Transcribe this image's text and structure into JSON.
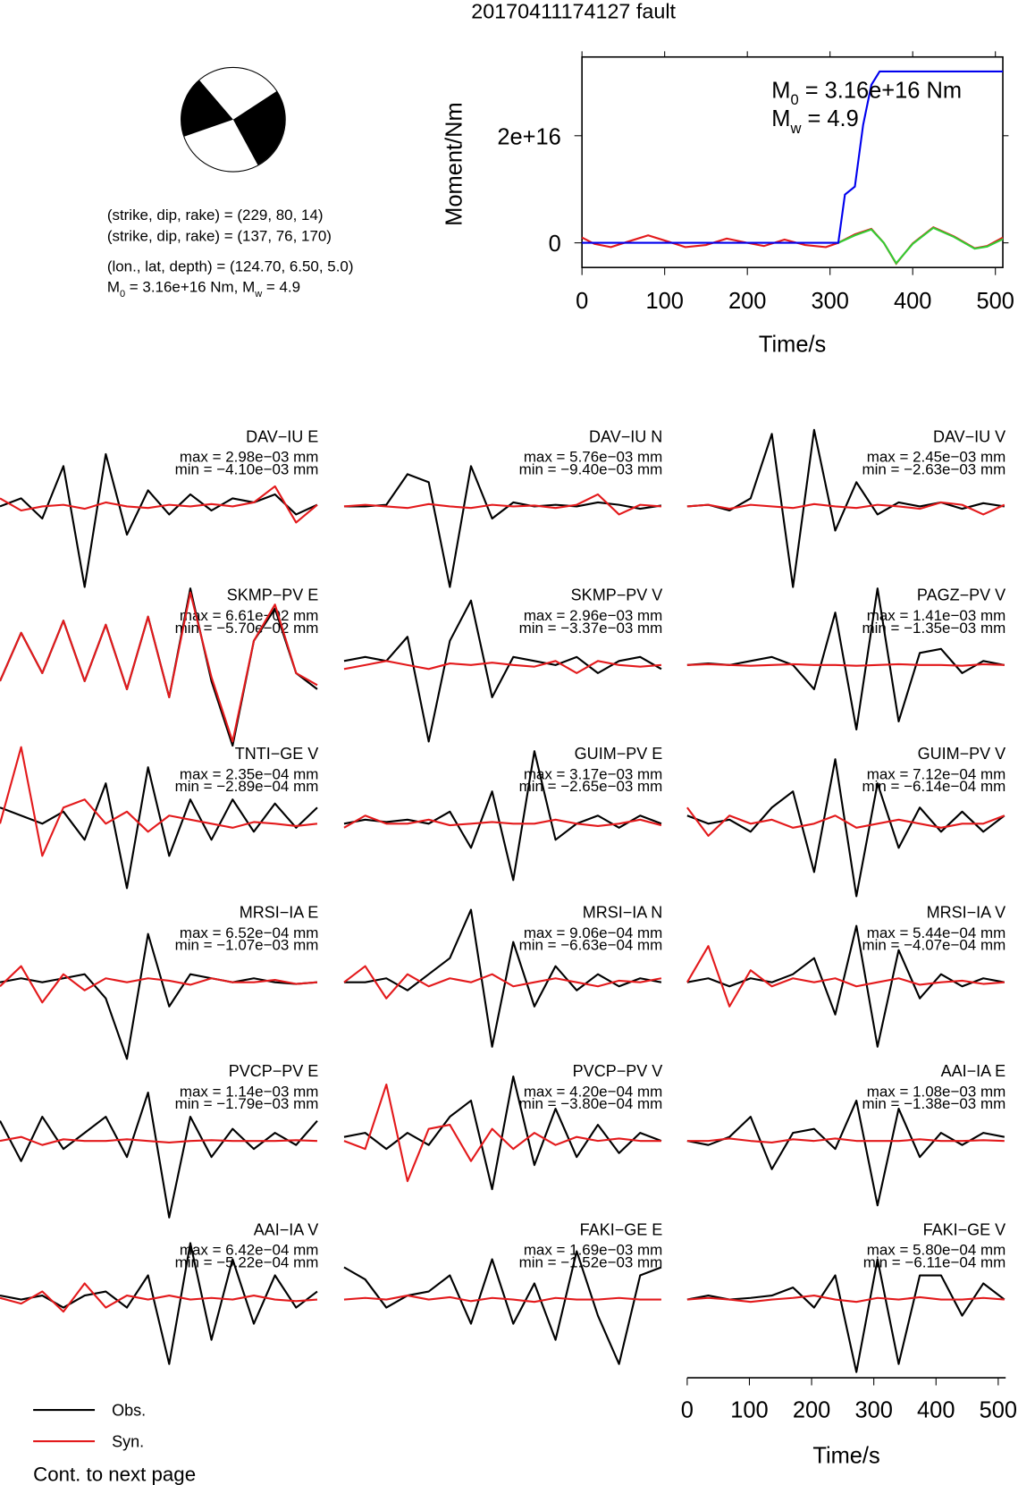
{
  "title": "20170411174127 fault",
  "mechanism": {
    "lines": [
      "(strike, dip, rake) = (229, 80, 14)",
      "(strike, dip, rake) = (137, 76, 170)",
      "(lon., lat, depth) = (124.70, 6.50, 5.0)"
    ],
    "moment_parts": [
      "M",
      "0",
      " = 3.16e+16 Nm, M",
      "w",
      " = 4.9"
    ]
  },
  "chart_data": [
    {
      "type": "line",
      "xlabel": "Time/s",
      "ylabel": "Moment/Nm",
      "xlim": [
        0,
        509
      ],
      "ylim": [
        -4600000000000000.0,
        3.47e+16
      ],
      "xticks": [
        0,
        100,
        200,
        300,
        400,
        500
      ],
      "yticks": [
        0,
        {
          "value": 2e+16,
          "label": "2e+16"
        }
      ],
      "annotations": [
        [
          "M",
          "0",
          " = 3.16e+16 Nm"
        ],
        [
          "M",
          "w",
          " = 4.9"
        ]
      ],
      "series": [
        {
          "color": "#e31a1c",
          "x": [
            0,
            15,
            35,
            55,
            80,
            105,
            125,
            150,
            175,
            200,
            220,
            245,
            270,
            295,
            310,
            330,
            350,
            365,
            380,
            400,
            425,
            450,
            475,
            490,
            509
          ],
          "values": [
            1000000000000000.0,
            -200000000000000.0,
            -800000000000000.0,
            200000000000000.0,
            1400000000000000.0,
            200000000000000.0,
            -800000000000000.0,
            -400000000000000.0,
            800000000000000.0,
            0,
            -600000000000000.0,
            600000000000000.0,
            -400000000000000.0,
            -800000000000000.0,
            0,
            1600000000000000.0,
            2600000000000000.0,
            0,
            -3900000000000000.0,
            -100000000000000.0,
            2900000000000000.0,
            1200000000000000.0,
            -1000000000000000.0,
            -600000000000000.0,
            1000000000000000.0
          ]
        },
        {
          "color": "#33cc33",
          "x": [
            0,
            310,
            330,
            350,
            365,
            380,
            400,
            425,
            450,
            475,
            490,
            509
          ],
          "values": [
            null,
            0,
            1400000000000000.0,
            2500000000000000.0,
            0,
            -3800000000000000.0,
            -200000000000000.0,
            2800000000000000.0,
            1100000000000000.0,
            -1100000000000000.0,
            -700000000000000.0,
            700000000000000.0
          ]
        },
        {
          "color": "#0000ee",
          "x": [
            0,
            310,
            318,
            330,
            340,
            350,
            360,
            509
          ],
          "values": [
            0,
            0,
            9000000000000000.0,
            1.05e+16,
            2.2e+16,
            2.95e+16,
            3.2e+16,
            3.2e+16
          ]
        }
      ]
    },
    {
      "type": "waveform",
      "xlabel": "Time/s",
      "xlim": [
        0,
        512
      ],
      "xticks": [
        0,
        100,
        200,
        300,
        400,
        500
      ],
      "series": [
        {
          "name": "Obs.",
          "color": "#000000"
        },
        {
          "name": "Syn.",
          "color": "#e31a1c"
        }
      ],
      "x": [
        0,
        34,
        68,
        102,
        136,
        170,
        204,
        238,
        272,
        306,
        340,
        374,
        408,
        442,
        476,
        510
      ],
      "panels": [
        {
          "label": "DAV−IU E",
          "max": "max = 2.98e−03 mm",
          "min": "min = −4.10e−03 mm",
          "series": [
            [
              0,
              0.1,
              -0.15,
              0.5,
              -1.0,
              0.65,
              -0.35,
              0.2,
              -0.1,
              0.15,
              -0.05,
              0.1,
              0.05,
              0.15,
              -0.1,
              0.02
            ],
            [
              0.1,
              -0.05,
              0,
              0.02,
              -0.03,
              0.05,
              0,
              -0.02,
              0.02,
              0,
              0.03,
              0,
              0.05,
              0.25,
              -0.2,
              0.02
            ]
          ]
        },
        {
          "label": "DAV−IU N",
          "max": "max = 5.76e−03 mm",
          "min": "min = −9.40e−03 mm",
          "series": [
            [
              0,
              0,
              0.02,
              0.4,
              0.3,
              -1.0,
              0.5,
              -0.15,
              0.05,
              0,
              0.02,
              0,
              0.05,
              0.02,
              -0.03,
              0.01
            ],
            [
              0,
              0.02,
              0,
              -0.02,
              0.03,
              0,
              -0.02,
              0.02,
              0,
              0.01,
              -0.02,
              0.02,
              0.15,
              -0.1,
              0.02,
              0
            ]
          ]
        },
        {
          "label": "DAV−IU V",
          "max": "max = 2.45e−03 mm",
          "min": "min = −2.63e−03 mm",
          "series": [
            [
              0,
              0.02,
              -0.05,
              0.1,
              0.9,
              -1.0,
              0.95,
              -0.3,
              0.3,
              -0.1,
              0.05,
              0,
              0.05,
              -0.03,
              0.04,
              0
            ],
            [
              0,
              0.02,
              -0.03,
              0.02,
              0,
              -0.02,
              0.03,
              0,
              -0.02,
              0.02,
              0,
              -0.03,
              0.05,
              0.02,
              -0.1,
              0.02
            ]
          ]
        },
        {
          "label": "SKMP−PV E",
          "max": "max = 6.61e−02 mm",
          "min": "min = −5.70e−02 mm",
          "series": [
            [
              -0.2,
              0.4,
              -0.1,
              0.55,
              -0.2,
              0.5,
              -0.3,
              0.6,
              -0.4,
              0.95,
              -0.2,
              -1.0,
              0.3,
              0.7,
              -0.1,
              -0.3
            ],
            [
              -0.2,
              0.4,
              -0.1,
              0.55,
              -0.2,
              0.5,
              -0.3,
              0.6,
              -0.4,
              0.9,
              -0.15,
              -0.95,
              0.3,
              0.75,
              -0.1,
              -0.25
            ]
          ]
        },
        {
          "label": "SKMP−PV V",
          "max": "max = 2.96e−03 mm",
          "min": "min = −3.37e−03 mm",
          "series": [
            [
              0.05,
              0.1,
              0.05,
              0.35,
              -0.95,
              0.3,
              0.8,
              -0.4,
              0.1,
              0.05,
              0,
              0.1,
              -0.1,
              0.05,
              0.1,
              -0.05
            ],
            [
              -0.05,
              0,
              0.05,
              0,
              -0.05,
              0.02,
              0,
              0.03,
              0,
              -0.02,
              0.05,
              -0.1,
              0.05,
              0,
              -0.02,
              0
            ]
          ]
        },
        {
          "label": "PAGZ−PV V",
          "max": "max = 1.41e−03 mm",
          "min": "min = −1.35e−03 mm",
          "series": [
            [
              0,
              0.02,
              0,
              0.05,
              0.1,
              0,
              -0.3,
              0.65,
              -0.8,
              0.95,
              -0.7,
              0.15,
              0.2,
              -0.1,
              0.05,
              0
            ],
            [
              0,
              0.01,
              0,
              -0.01,
              0,
              0.01,
              0,
              0,
              -0.01,
              0,
              0.01,
              0,
              0,
              -0.01,
              0.01,
              0
            ]
          ]
        },
        {
          "label": "TNTI−GE V",
          "max": "max = 2.35e−04 mm",
          "min": "min = −2.89e−04 mm",
          "series": [
            [
              0.2,
              0.1,
              0,
              0.15,
              -0.2,
              0.5,
              -0.8,
              0.7,
              -0.4,
              0.3,
              -0.2,
              0.3,
              -0.1,
              0.25,
              -0.05,
              0.2
            ],
            [
              0,
              0.95,
              -0.4,
              0.2,
              0.3,
              0,
              0.15,
              -0.1,
              0.1,
              0.05,
              0,
              -0.05,
              0.02,
              0,
              -0.03,
              0
            ]
          ]
        },
        {
          "label": "GUIM−PV E",
          "max": "max = 3.17e−03 mm",
          "min": "min = −2.65e−03 mm",
          "series": [
            [
              0,
              0.05,
              0.02,
              0.05,
              0,
              0.15,
              -0.3,
              0.4,
              -0.7,
              0.9,
              -0.2,
              0,
              0.1,
              -0.05,
              0.1,
              0
            ],
            [
              -0.05,
              0.1,
              0,
              0,
              0.05,
              -0.02,
              0,
              0.02,
              0,
              0,
              0.05,
              0,
              -0.03,
              0,
              0.05,
              -0.02
            ]
          ]
        },
        {
          "label": "GUIM−PV V",
          "max": "max = 7.12e−04 mm",
          "min": "min = −6.14e−04 mm",
          "series": [
            [
              0.1,
              0,
              0.05,
              -0.1,
              0.2,
              0.4,
              -0.6,
              0.8,
              -0.9,
              0.5,
              -0.3,
              0.2,
              -0.1,
              0.15,
              -0.1,
              0.1
            ],
            [
              0.2,
              -0.15,
              0.1,
              0,
              0.05,
              -0.05,
              0,
              0.1,
              -0.05,
              0,
              0.05,
              0,
              -0.05,
              0,
              0,
              0.1
            ]
          ]
        },
        {
          "label": "MRSI−IA E",
          "max": "max = 6.52e−04 mm",
          "min": "min = −1.07e−03 mm",
          "series": [
            [
              0,
              0.05,
              0,
              0.05,
              0.1,
              -0.2,
              -0.95,
              0.6,
              -0.3,
              0.1,
              0.05,
              0,
              0.05,
              0,
              -0.02,
              0
            ],
            [
              -0.05,
              0.2,
              -0.25,
              0.1,
              -0.1,
              0.05,
              0,
              0.05,
              0.02,
              -0.03,
              0.05,
              0,
              0,
              0.03,
              -0.02,
              0
            ]
          ]
        },
        {
          "label": "MRSI−IA N",
          "max": "max = 9.06e−04 mm",
          "min": "min = −6.63e−04 mm",
          "series": [
            [
              0,
              0,
              0.05,
              -0.1,
              0.1,
              0.3,
              0.9,
              -0.8,
              0.5,
              -0.3,
              0.2,
              -0.1,
              0.1,
              -0.05,
              0.05,
              0
            ],
            [
              0,
              0.2,
              -0.2,
              0.1,
              -0.05,
              0.05,
              0,
              0.1,
              -0.05,
              0,
              0.05,
              0,
              -0.05,
              0.02,
              0,
              0.05
            ]
          ]
        },
        {
          "label": "MRSI−IA V",
          "max": "max = 5.44e−04 mm",
          "min": "min = −4.07e−04 mm",
          "series": [
            [
              0,
              0.05,
              -0.05,
              0.05,
              0,
              0.1,
              0.3,
              -0.4,
              0.7,
              -0.8,
              0.4,
              -0.2,
              0.1,
              -0.05,
              0.05,
              0
            ],
            [
              0,
              0.45,
              -0.3,
              0.15,
              -0.05,
              0.05,
              0,
              0.05,
              -0.05,
              0,
              0.05,
              -0.03,
              0,
              0.02,
              -0.02,
              0
            ]
          ]
        },
        {
          "label": "PVCP−PV E",
          "max": "max = 1.14e−03 mm",
          "min": "min = −1.79e−03 mm",
          "series": [
            [
              0.25,
              -0.25,
              0.3,
              -0.1,
              0.1,
              0.3,
              -0.2,
              0.6,
              -0.95,
              0.3,
              -0.2,
              0.15,
              -0.1,
              0.1,
              -0.05,
              0.25
            ],
            [
              0,
              0.05,
              -0.05,
              0.02,
              0,
              0,
              0.02,
              0,
              -0.02,
              0,
              0.01,
              0,
              0,
              0,
              0.01,
              0
            ]
          ]
        },
        {
          "label": "PVCP−PV V",
          "max": "max = 4.20e−04 mm",
          "min": "min = −3.80e−04 mm",
          "series": [
            [
              0.05,
              0.1,
              -0.1,
              0.1,
              -0.05,
              0.3,
              0.5,
              -0.6,
              0.8,
              -0.3,
              0.4,
              -0.2,
              0.2,
              -0.15,
              0.1,
              0
            ],
            [
              0,
              -0.1,
              0.7,
              -0.5,
              0.15,
              0.2,
              -0.25,
              0.15,
              -0.1,
              0.1,
              -0.05,
              0.05,
              0,
              0.03,
              0,
              0
            ]
          ]
        },
        {
          "label": "AAI−IA E",
          "max": "max = 1.08e−03 mm",
          "min": "min = −1.38e−03 mm",
          "series": [
            [
              0,
              -0.05,
              0.05,
              0.3,
              -0.35,
              0.1,
              0.15,
              -0.1,
              0.5,
              -0.8,
              0.4,
              -0.2,
              0.1,
              -0.05,
              0.1,
              0.05
            ],
            [
              0,
              0,
              0.03,
              0,
              -0.02,
              0.02,
              0,
              0.03,
              0,
              0,
              0,
              0.02,
              0,
              0,
              0.01,
              0
            ]
          ]
        },
        {
          "label": "AAI−IA V",
          "max": "max = 6.42e−04 mm",
          "min": "min = −5.22e−04 mm",
          "series": [
            [
              0.05,
              0,
              0.05,
              -0.1,
              0.05,
              0.1,
              -0.1,
              0.3,
              -0.8,
              0.7,
              -0.5,
              0.5,
              -0.3,
              0.3,
              -0.1,
              0.1
            ],
            [
              0.02,
              -0.05,
              0.1,
              -0.15,
              0.2,
              -0.1,
              0.05,
              0,
              0.05,
              0,
              0.02,
              0,
              0.05,
              0,
              -0.02,
              0
            ]
          ]
        },
        {
          "label": "FAKI−GE E",
          "max": "max = 1.69e−03 mm",
          "min": "min = −1.52e−03 mm",
          "series": [
            [
              0.4,
              0.25,
              -0.1,
              0.05,
              0.1,
              0.3,
              -0.3,
              0.5,
              -0.3,
              0.2,
              -0.5,
              0.6,
              -0.2,
              -0.8,
              0.3,
              0.4
            ],
            [
              0,
              0.02,
              0,
              0.05,
              0,
              0.03,
              -0.02,
              0.02,
              0,
              -0.03,
              0.02,
              0,
              0,
              0.02,
              0,
              0
            ]
          ]
        },
        {
          "label": "FAKI−GE V",
          "max": "max = 5.80e−04 mm",
          "min": "min = −6.11e−04 mm",
          "series": [
            [
              0,
              0.05,
              0,
              0.02,
              0.05,
              0.15,
              -0.1,
              0.3,
              -0.9,
              0.5,
              -0.8,
              0.3,
              0.3,
              -0.2,
              0.2,
              0
            ],
            [
              0,
              0.02,
              0,
              -0.03,
              0,
              0.02,
              0.05,
              0,
              -0.03,
              0.02,
              0,
              0.03,
              0,
              0,
              0.02,
              0
            ]
          ]
        }
      ]
    }
  ],
  "footer": "Cont. to next page"
}
